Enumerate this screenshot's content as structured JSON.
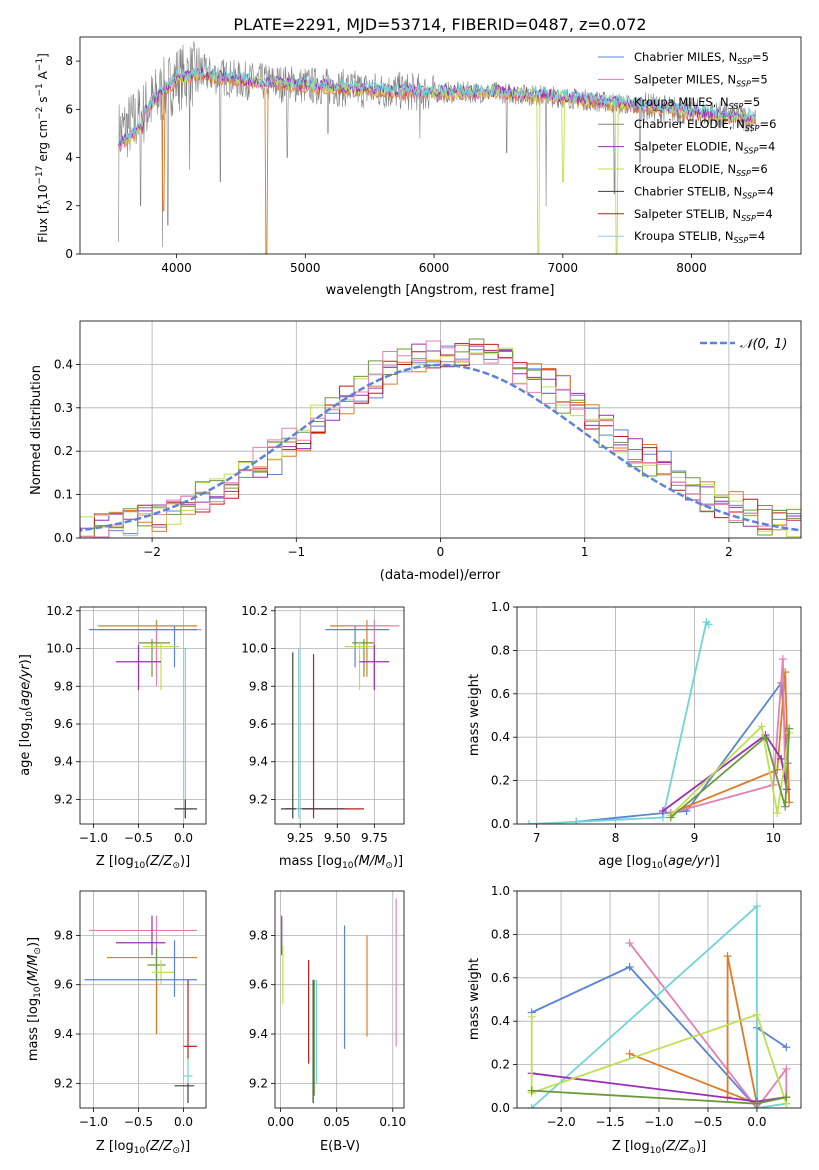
{
  "colors": {
    "series": [
      "#6a8fdc",
      "#e383b9",
      "#7fd3db",
      "#7f7f7f",
      "#9a2fb4",
      "#c8e36b",
      "#4f4f4f",
      "#c01a1a",
      "#9ec7e8"
    ],
    "blue": "#5b84d6",
    "orange": "#e07a28",
    "pink": "#e77fb3",
    "purple": "#9a2fb4",
    "lime": "#bde052",
    "green": "#6a9a3a",
    "red": "#c01a1a",
    "cyan": "#72d3d8",
    "gray": "#808080",
    "darkgray": "#404040",
    "grid": "#b0b0b0"
  },
  "chart_data": [
    {
      "id": "spectrum",
      "type": "line",
      "title": "PLATE=2291, MJD=53714, FIBERID=0487, z=0.072",
      "xlabel": "wavelength [Angstrom, rest frame]",
      "ylabel": "Flux [f_λ10^-17 erg cm^-2 s^-1 A^-1]",
      "xlim": [
        3250,
        8850
      ],
      "ylim": [
        0,
        9
      ],
      "xticks": [
        4000,
        5000,
        6000,
        7000,
        8000
      ],
      "yticks": [
        0,
        2,
        4,
        6,
        8
      ],
      "legend_position": "top-right",
      "legend": [
        {
          "pre": "Chabrier MILES, N",
          "sub": "SSP",
          "post": "=5"
        },
        {
          "pre": "Salpeter MILES, N",
          "sub": "SSP",
          "post": "=5"
        },
        {
          "pre": "Kroupa MILES, N",
          "sub": "SSP",
          "post": "=5"
        },
        {
          "pre": "Chabrier ELODIE, N",
          "sub": "SSP",
          "post": "=6"
        },
        {
          "pre": "Salpeter ELODIE, N",
          "sub": "SSP",
          "post": "=4"
        },
        {
          "pre": "Kroupa ELODIE, N",
          "sub": "SSP",
          "post": "=6"
        },
        {
          "pre": "Chabrier STELIB, N",
          "sub": "SSP",
          "post": "=4"
        },
        {
          "pre": "Salpeter STELIB, N",
          "sub": "SSP",
          "post": "=4"
        },
        {
          "pre": "Kroupa STELIB, N",
          "sub": "SSP",
          "post": "=4"
        }
      ],
      "continuum": [
        [
          3550,
          5.0
        ],
        [
          3700,
          5.6
        ],
        [
          3850,
          6.5
        ],
        [
          4000,
          7.3
        ],
        [
          4200,
          7.5
        ],
        [
          4500,
          7.2
        ],
        [
          5000,
          7.0
        ],
        [
          5500,
          6.8
        ],
        [
          6000,
          6.7
        ],
        [
          6500,
          6.7
        ],
        [
          7000,
          6.5
        ],
        [
          7500,
          6.2
        ],
        [
          8000,
          5.9
        ],
        [
          8500,
          5.6
        ]
      ],
      "data_dips": [
        [
          3550,
          0.5
        ],
        [
          3720,
          2.0
        ],
        [
          3890,
          0.3
        ],
        [
          3933,
          1.2
        ],
        [
          4102,
          3.5
        ],
        [
          4340,
          3.0
        ],
        [
          4861,
          4.0
        ],
        [
          5175,
          5.0
        ],
        [
          5890,
          4.8
        ],
        [
          6563,
          4.2
        ],
        [
          6870,
          2.0
        ],
        [
          7400,
          2.5
        ],
        [
          7600,
          3.8
        ]
      ],
      "model_dips": [
        [
          3900,
          1.8
        ],
        [
          4700,
          0.0
        ],
        [
          6810,
          0.0
        ],
        [
          7000,
          3.0
        ],
        [
          7420,
          0.0
        ]
      ]
    },
    {
      "id": "residuals",
      "type": "line",
      "xlabel": "(data-model)/error",
      "ylabel": "Normed distribution",
      "xlim": [
        -2.5,
        2.5
      ],
      "ylim": [
        0,
        0.5
      ],
      "xticks": [
        -2,
        -1,
        0,
        1,
        2
      ],
      "yticks": [
        0.0,
        0.1,
        0.2,
        0.3,
        0.4
      ],
      "legend_position": "top-right",
      "gaussian_label": "𝒩(0, 1)"
    },
    {
      "id": "age-vs-Z",
      "type": "scatter",
      "xlabel_pre": "Z [log",
      "xlabel_sub": "10",
      "xlabel_post": "(Z/Z",
      "xlabel_end": ")]",
      "ylabel": "age  [log10(age/yr)]",
      "xlim": [
        -1.15,
        0.25
      ],
      "ylim": [
        9.07,
        10.22
      ],
      "xticks": [
        -1.0,
        -0.5,
        0.0
      ],
      "yticks": [
        9.2,
        9.4,
        9.6,
        9.8,
        10.0,
        10.2
      ],
      "points": [
        {
          "c": "orange",
          "x": -0.3,
          "xe": [
            -0.95,
            0.15
          ],
          "y": 10.12,
          "ye": [
            9.9,
            10.15
          ]
        },
        {
          "c": "pink",
          "x": -0.3,
          "xe": [
            -0.95,
            0.2
          ],
          "y": 10.1,
          "ye": [
            9.8,
            10.12
          ]
        },
        {
          "c": "blue",
          "x": -0.1,
          "xe": [
            -1.05,
            0.15
          ],
          "y": 10.1,
          "ye": [
            9.9,
            10.12
          ]
        },
        {
          "c": "green",
          "x": -0.35,
          "xe": [
            -0.5,
            -0.15
          ],
          "y": 10.03,
          "ye": [
            9.85,
            10.05
          ]
        },
        {
          "c": "lime",
          "x": -0.25,
          "xe": [
            -0.45,
            -0.05
          ],
          "y": 10.01,
          "ye": [
            9.78,
            10.03
          ]
        },
        {
          "c": "purple",
          "x": -0.5,
          "xe": [
            -0.75,
            -0.25
          ],
          "y": 9.93,
          "ye": [
            9.78,
            10.02
          ]
        },
        {
          "c": "cyan",
          "x": 0.02,
          "xe": [
            0.0,
            0.04
          ],
          "y": 10.0,
          "ye": [
            9.1,
            10.0
          ]
        },
        {
          "c": "darkgray",
          "x": 0.02,
          "xe": [
            -0.1,
            0.15
          ],
          "y": 9.15,
          "ye": [
            9.1,
            9.2
          ]
        }
      ]
    },
    {
      "id": "age-vs-mass",
      "type": "scatter",
      "xlabel_pre": "mass [log",
      "xlabel_sub": "10",
      "xlabel_post": "(M/M",
      "xlabel_end": ")]",
      "xlim": [
        9.08,
        9.95
      ],
      "ylim": [
        9.07,
        10.22
      ],
      "xticks": [
        9.25,
        9.5,
        9.75
      ],
      "xticklabels": [
        "9.25",
        "9.50",
        "9.75"
      ],
      "yticks": [
        9.2,
        9.4,
        9.6,
        9.8,
        10.0,
        10.2
      ],
      "points": [
        {
          "c": "orange",
          "x": 9.7,
          "xe": [
            9.45,
            9.85
          ],
          "y": 10.12,
          "ye": [
            9.85,
            10.15
          ]
        },
        {
          "c": "pink",
          "x": 9.75,
          "xe": [
            9.55,
            9.92
          ],
          "y": 10.12,
          "ye": [
            9.8,
            10.15
          ]
        },
        {
          "c": "blue",
          "x": 9.62,
          "xe": [
            9.42,
            9.85
          ],
          "y": 10.1,
          "ye": [
            9.9,
            10.12
          ]
        },
        {
          "c": "green",
          "x": 9.68,
          "xe": [
            9.6,
            9.75
          ],
          "y": 10.03,
          "ye": [
            9.85,
            10.05
          ]
        },
        {
          "c": "lime",
          "x": 9.65,
          "xe": [
            9.55,
            9.75
          ],
          "y": 10.01,
          "ye": [
            9.78,
            10.03
          ]
        },
        {
          "c": "purple",
          "x": 9.75,
          "xe": [
            9.65,
            9.85
          ],
          "y": 9.93,
          "ye": [
            9.78,
            10.02
          ]
        },
        {
          "c": "red",
          "x": 9.34,
          "xe": [
            9.15,
            9.68
          ],
          "y": 9.15,
          "ye": [
            9.1,
            9.97
          ]
        },
        {
          "c": "darkgray",
          "x": 9.2,
          "xe": [
            9.12,
            9.55
          ],
          "y": 9.15,
          "ye": [
            9.1,
            9.98
          ]
        },
        {
          "c": "cyan",
          "x": 9.24,
          "xe": [
            9.22,
            9.26
          ],
          "y": 9.15,
          "ye": [
            9.1,
            10.0
          ]
        }
      ]
    },
    {
      "id": "mass-weight-vs-age",
      "type": "line",
      "xlabel": "age  [log10(age/yr)]",
      "ylabel": "mass weight",
      "xlim": [
        6.75,
        10.35
      ],
      "ylim": [
        0,
        1.0
      ],
      "xticks": [
        7,
        8,
        9,
        10
      ],
      "yticks": [
        0.0,
        0.2,
        0.4,
        0.6,
        0.8,
        1.0
      ],
      "series": [
        {
          "c": "blue",
          "x": [
            7.5,
            8.6,
            8.9,
            10.1,
            10.18
          ],
          "y": [
            0.01,
            0.05,
            0.06,
            0.65,
            0.28
          ]
        },
        {
          "c": "cyan",
          "x": [
            6.9,
            7.5,
            8.6,
            9.15,
            9.18
          ],
          "y": [
            0.0,
            0.01,
            0.03,
            0.93,
            0.92
          ]
        },
        {
          "c": "orange",
          "x": [
            8.7,
            10.05,
            10.15,
            10.2
          ],
          "y": [
            0.05,
            0.25,
            0.7,
            0.1
          ]
        },
        {
          "c": "pink",
          "x": [
            8.7,
            10.0,
            10.12,
            10.15
          ],
          "y": [
            0.05,
            0.18,
            0.76,
            0.2
          ]
        },
        {
          "c": "purple",
          "x": [
            8.6,
            9.9,
            10.1,
            10.17
          ],
          "y": [
            0.06,
            0.41,
            0.3,
            0.16
          ]
        },
        {
          "c": "lime",
          "x": [
            8.7,
            9.85,
            10.05,
            10.2
          ],
          "y": [
            0.04,
            0.45,
            0.05,
            0.42
          ]
        },
        {
          "c": "green",
          "x": [
            8.7,
            9.9,
            10.15,
            10.2
          ],
          "y": [
            0.03,
            0.4,
            0.08,
            0.44
          ]
        }
      ]
    },
    {
      "id": "mass-vs-Z",
      "type": "scatter",
      "xlabel_pre": "Z [log",
      "xlabel_sub": "10",
      "xlabel_post": "(Z/Z",
      "xlabel_end": ")]",
      "ylabel_pre": "mass [log",
      "ylabel_sub": "10",
      "ylabel_post": "(M/M",
      "ylabel_end": ")]",
      "xlim": [
        -1.15,
        0.25
      ],
      "ylim": [
        9.1,
        9.98
      ],
      "xticks": [
        -1.0,
        -0.5,
        0.0
      ],
      "yticks": [
        9.2,
        9.4,
        9.6,
        9.8
      ],
      "points": [
        {
          "c": "pink",
          "x": -0.3,
          "xe": [
            -1.05,
            0.15
          ],
          "y": 9.82,
          "ye": [
            9.4,
            9.88
          ]
        },
        {
          "c": "purple",
          "x": -0.35,
          "xe": [
            -0.75,
            -0.2
          ],
          "y": 9.77,
          "ye": [
            9.72,
            9.88
          ]
        },
        {
          "c": "orange",
          "x": -0.3,
          "xe": [
            -0.85,
            0.15
          ],
          "y": 9.71,
          "ye": [
            9.4,
            9.75
          ]
        },
        {
          "c": "green",
          "x": -0.3,
          "xe": [
            -0.4,
            -0.2
          ],
          "y": 9.68,
          "ye": [
            9.62,
            9.75
          ]
        },
        {
          "c": "lime",
          "x": -0.25,
          "xe": [
            -0.35,
            -0.1
          ],
          "y": 9.65,
          "ye": [
            9.6,
            9.7
          ]
        },
        {
          "c": "blue",
          "x": -0.1,
          "xe": [
            -1.1,
            0.15
          ],
          "y": 9.62,
          "ye": [
            9.55,
            9.78
          ]
        },
        {
          "c": "red",
          "x": 0.05,
          "xe": [
            0.0,
            0.15
          ],
          "y": 9.35,
          "ye": [
            9.3,
            9.62
          ]
        },
        {
          "c": "cyan",
          "x": 0.05,
          "xe": [
            0.0,
            0.1
          ],
          "y": 9.23,
          "ye": [
            9.2,
            9.3
          ]
        },
        {
          "c": "darkgray",
          "x": 0.05,
          "xe": [
            -0.1,
            0.12
          ],
          "y": 9.19,
          "ye": [
            9.12,
            9.2
          ]
        }
      ]
    },
    {
      "id": "mass-vs-ebv",
      "type": "scatter",
      "xlabel": "E(B-V)",
      "xlim": [
        -0.005,
        0.11
      ],
      "ylim": [
        9.1,
        9.98
      ],
      "xticks": [
        0.0,
        0.05,
        0.1
      ],
      "xticklabels": [
        "0.00",
        "0.05",
        "0.10"
      ],
      "yticks": [
        9.2,
        9.4,
        9.6,
        9.8
      ],
      "vbars": [
        {
          "c": "purple",
          "x": 0.001,
          "ye": [
            9.72,
            9.88
          ]
        },
        {
          "c": "lime",
          "x": 0.002,
          "ye": [
            9.52,
            9.76
          ]
        },
        {
          "c": "red",
          "x": 0.025,
          "ye": [
            9.28,
            9.7
          ]
        },
        {
          "c": "darkgray",
          "x": 0.029,
          "ye": [
            9.12,
            9.62
          ]
        },
        {
          "c": "green",
          "x": 0.03,
          "ye": [
            9.15,
            9.62
          ]
        },
        {
          "c": "cyan",
          "x": 0.032,
          "ye": [
            9.2,
            9.62
          ]
        },
        {
          "c": "blue",
          "x": 0.057,
          "ye": [
            9.34,
            9.84
          ]
        },
        {
          "c": "orange",
          "x": 0.077,
          "ye": [
            9.39,
            9.8
          ]
        },
        {
          "c": "pink",
          "x": 0.103,
          "ye": [
            9.35,
            9.95
          ]
        }
      ]
    },
    {
      "id": "mass-weight-vs-Z",
      "type": "line",
      "xlabel_pre": "Z [log",
      "xlabel_sub": "10",
      "xlabel_post": "(Z/Z",
      "xlabel_end": ")]",
      "ylabel": "mass weight",
      "xlim": [
        -2.45,
        0.45
      ],
      "ylim": [
        0,
        1.0
      ],
      "xticks": [
        -2.0,
        -1.5,
        -1.0,
        -0.5,
        0.0
      ],
      "yticks": [
        0.0,
        0.2,
        0.4,
        0.6,
        0.8,
        1.0
      ],
      "series": [
        {
          "c": "blue",
          "x": [
            -2.3,
            -1.3,
            0.0,
            0.0,
            0.3
          ],
          "y": [
            0.44,
            0.65,
            0.0,
            0.37,
            0.28
          ]
        },
        {
          "c": "pink",
          "x": [
            -1.3,
            0.0,
            0.3,
            0.3
          ],
          "y": [
            0.76,
            0.0,
            0.18,
            0.05
          ]
        },
        {
          "c": "orange",
          "x": [
            -1.3,
            0.0,
            -0.3,
            -0.3
          ],
          "y": [
            0.25,
            0.02,
            0.7,
            0.05
          ]
        },
        {
          "c": "cyan",
          "x": [
            -2.3,
            0.0,
            0.0,
            0.3
          ],
          "y": [
            0.0,
            0.93,
            0.0,
            0.02
          ]
        },
        {
          "c": "purple",
          "x": [
            -2.3,
            0.0,
            0.3
          ],
          "y": [
            0.16,
            0.03,
            0.05
          ]
        },
        {
          "c": "lime",
          "x": [
            -2.3,
            -2.3,
            0.0,
            0.3
          ],
          "y": [
            0.42,
            0.07,
            0.43,
            0.02
          ]
        },
        {
          "c": "green",
          "x": [
            -2.3,
            0.0,
            0.3
          ],
          "y": [
            0.08,
            0.02,
            0.05
          ]
        }
      ]
    }
  ]
}
